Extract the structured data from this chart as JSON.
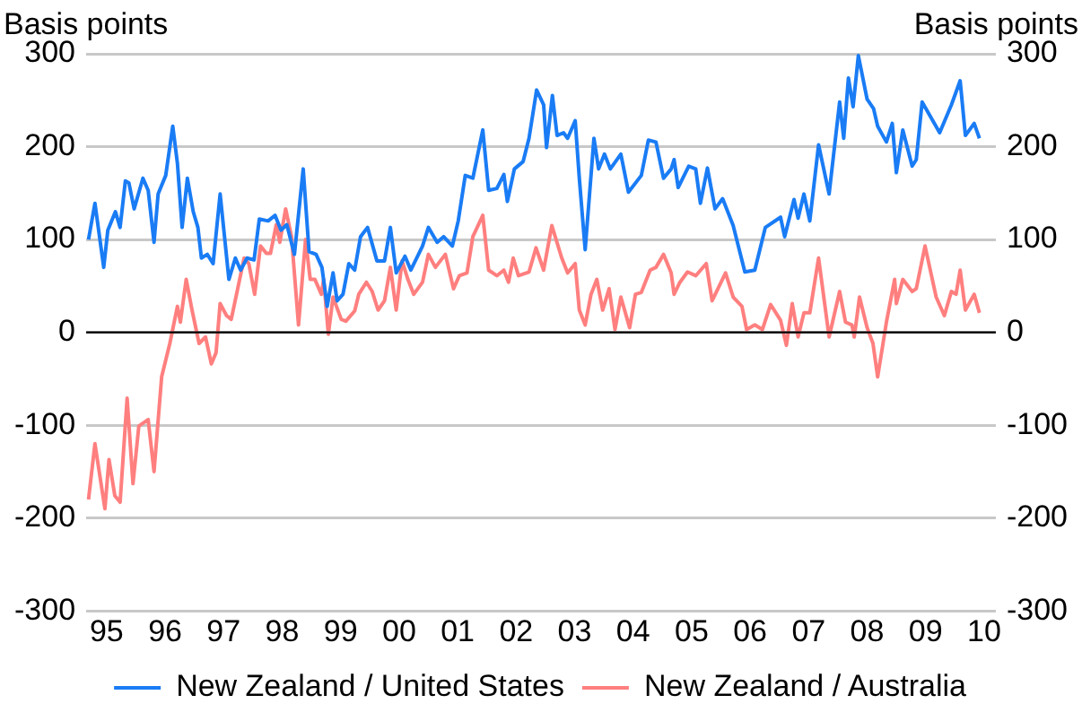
{
  "chart_data": {
    "type": "line",
    "ylabel": "Basis points",
    "y2label": "Basis points",
    "xlim": [
      1994.65,
      2010.2
    ],
    "xticks": [
      {
        "value": 1995,
        "label": "95"
      },
      {
        "value": 1996,
        "label": "96"
      },
      {
        "value": 1997,
        "label": "97"
      },
      {
        "value": 1998,
        "label": "98"
      },
      {
        "value": 1999,
        "label": "99"
      },
      {
        "value": 2000,
        "label": "00"
      },
      {
        "value": 2001,
        "label": "01"
      },
      {
        "value": 2002,
        "label": "02"
      },
      {
        "value": 2003,
        "label": "03"
      },
      {
        "value": 2004,
        "label": "04"
      },
      {
        "value": 2005,
        "label": "05"
      },
      {
        "value": 2006,
        "label": "06"
      },
      {
        "value": 2007,
        "label": "07"
      },
      {
        "value": 2008,
        "label": "08"
      },
      {
        "value": 2009,
        "label": "09"
      },
      {
        "value": 2010,
        "label": "10"
      }
    ],
    "ylim": [
      -300,
      300
    ],
    "yticks": [
      -300,
      -200,
      -100,
      0,
      100,
      200,
      300
    ],
    "y2lim": [
      -300,
      300
    ],
    "y2ticks": [
      -300,
      -200,
      -100,
      0,
      100,
      200,
      300
    ],
    "grid": "y",
    "legend": "bottom",
    "ref_lines": [
      {
        "axis": "y",
        "value": 0,
        "color": "#000000"
      }
    ],
    "series": [
      {
        "name": "New Zealand / United States",
        "color": "#1a7cf5",
        "x": [
          1994.69,
          1994.8,
          1994.95,
          1995.02,
          1995.15,
          1995.23,
          1995.32,
          1995.38,
          1995.47,
          1995.62,
          1995.71,
          1995.81,
          1995.88,
          1996.01,
          1996.13,
          1996.21,
          1996.29,
          1996.38,
          1996.48,
          1996.56,
          1996.62,
          1996.72,
          1996.82,
          1996.94,
          1997.09,
          1997.2,
          1997.29,
          1997.4,
          1997.52,
          1997.61,
          1997.76,
          1997.88,
          1997.98,
          1998.08,
          1998.21,
          1998.36,
          1998.46,
          1998.58,
          1998.68,
          1998.77,
          1998.87,
          1998.94,
          1999.04,
          1999.14,
          1999.24,
          1999.34,
          1999.46,
          1999.62,
          1999.75,
          1999.85,
          1999.95,
          2000.1,
          2000.2,
          2000.4,
          2000.5,
          2000.65,
          2000.76,
          2000.91,
          2001.01,
          2001.13,
          2001.26,
          2001.43,
          2001.53,
          2001.67,
          2001.79,
          2001.85,
          2001.97,
          2002.12,
          2002.22,
          2002.35,
          2002.47,
          2002.52,
          2002.62,
          2002.7,
          2002.81,
          2002.88,
          2003.01,
          2003.08,
          2003.18,
          2003.33,
          2003.41,
          2003.51,
          2003.61,
          2003.79,
          2003.92,
          2004.14,
          2004.26,
          2004.39,
          2004.52,
          2004.65,
          2004.7,
          2004.77,
          2004.95,
          2005.07,
          2005.15,
          2005.27,
          2005.4,
          2005.53,
          2005.71,
          2005.91,
          2006.08,
          2006.26,
          2006.52,
          2006.59,
          2006.75,
          2006.82,
          2006.92,
          2007.02,
          2007.17,
          2007.35,
          2007.53,
          2007.6,
          2007.68,
          2007.76,
          2007.85,
          2008.0,
          2008.11,
          2008.18,
          2008.33,
          2008.43,
          2008.5,
          2008.61,
          2008.77,
          2008.84,
          2008.94,
          2009.24,
          2009.44,
          2009.59,
          2009.68,
          2009.83,
          2009.92
        ],
        "values": [
          100,
          139,
          70,
          110,
          130,
          113,
          163,
          161,
          133,
          166,
          153,
          97,
          149,
          169,
          222,
          182,
          113,
          166,
          130,
          113,
          80,
          84,
          74,
          149,
          57,
          80,
          67,
          80,
          78,
          122,
          120,
          126,
          110,
          116,
          84,
          176,
          87,
          84,
          70,
          28,
          64,
          34,
          41,
          74,
          67,
          103,
          113,
          77,
          77,
          113,
          64,
          82,
          67,
          93,
          113,
          97,
          103,
          93,
          120,
          169,
          166,
          218,
          153,
          155,
          170,
          141,
          176,
          184,
          209,
          261,
          245,
          199,
          255,
          212,
          215,
          209,
          228,
          166,
          89,
          209,
          176,
          192,
          176,
          192,
          151,
          169,
          207,
          205,
          166,
          176,
          186,
          156,
          179,
          176,
          139,
          177,
          133,
          144,
          115,
          65,
          67,
          113,
          124,
          103,
          143,
          123,
          149,
          120,
          202,
          149,
          248,
          209,
          274,
          243,
          298,
          251,
          241,
          222,
          205,
          225,
          172,
          218,
          179,
          186,
          248,
          215,
          245,
          271,
          212,
          225,
          209
        ]
      },
      {
        "name": "New Zealand / Australia",
        "color": "#ff7f7f",
        "x": [
          1994.69,
          1994.8,
          1994.97,
          1995.04,
          1995.14,
          1995.23,
          1995.35,
          1995.45,
          1995.55,
          1995.71,
          1995.81,
          1995.94,
          1996.08,
          1996.21,
          1996.26,
          1996.36,
          1996.46,
          1996.58,
          1996.69,
          1996.79,
          1996.87,
          1996.94,
          1997.05,
          1997.13,
          1997.23,
          1997.35,
          1997.43,
          1997.53,
          1997.63,
          1997.73,
          1997.8,
          1997.9,
          1997.96,
          1998.06,
          1998.16,
          1998.28,
          1998.4,
          1998.48,
          1998.56,
          1998.67,
          1998.71,
          1998.79,
          1998.87,
          1999.01,
          1999.09,
          1999.24,
          1999.31,
          1999.44,
          1999.54,
          1999.64,
          1999.75,
          1999.85,
          1999.95,
          2000.05,
          2000.15,
          2000.25,
          2000.4,
          2000.5,
          2000.62,
          2000.79,
          2000.93,
          2001.03,
          2001.16,
          2001.26,
          2001.43,
          2001.53,
          2001.67,
          2001.79,
          2001.87,
          2001.95,
          2002.04,
          2002.22,
          2002.34,
          2002.47,
          2002.61,
          2002.78,
          2002.88,
          2003.01,
          2003.08,
          2003.18,
          2003.28,
          2003.38,
          2003.48,
          2003.59,
          2003.69,
          2003.79,
          2003.94,
          2004.04,
          2004.14,
          2004.29,
          2004.39,
          2004.52,
          2004.65,
          2004.7,
          2004.8,
          2004.93,
          2005.07,
          2005.25,
          2005.35,
          2005.58,
          2005.71,
          2005.86,
          2005.94,
          2006.08,
          2006.21,
          2006.35,
          2006.52,
          2006.62,
          2006.72,
          2006.82,
          2006.92,
          2007.02,
          2007.17,
          2007.35,
          2007.53,
          2007.63,
          2007.74,
          2007.78,
          2007.87,
          2008.0,
          2008.1,
          2008.18,
          2008.33,
          2008.47,
          2008.5,
          2008.61,
          2008.77,
          2008.84,
          2008.99,
          2009.18,
          2009.32,
          2009.44,
          2009.52,
          2009.59,
          2009.68,
          2009.83,
          2009.92
        ],
        "values": [
          -180,
          -120,
          -190,
          -137,
          -176,
          -183,
          -71,
          -163,
          -101,
          -94,
          -150,
          -48,
          -12,
          28,
          11,
          57,
          24,
          -12,
          -5,
          -34,
          -22,
          31,
          18,
          14,
          44,
          80,
          74,
          41,
          93,
          85,
          85,
          116,
          97,
          133,
          103,
          8,
          100,
          57,
          57,
          41,
          57,
          -2,
          38,
          14,
          12,
          23,
          41,
          54,
          44,
          24,
          34,
          70,
          24,
          77,
          57,
          41,
          54,
          84,
          70,
          84,
          47,
          61,
          64,
          103,
          126,
          67,
          61,
          67,
          54,
          80,
          61,
          65,
          91,
          67,
          115,
          80,
          64,
          74,
          24,
          8,
          41,
          57,
          24,
          47,
          3,
          38,
          5,
          41,
          43,
          67,
          70,
          84,
          64,
          41,
          54,
          65,
          61,
          74,
          34,
          64,
          38,
          28,
          3,
          8,
          3,
          30,
          13,
          -14,
          31,
          -5,
          21,
          21,
          80,
          -5,
          44,
          11,
          8,
          -5,
          38,
          5,
          -12,
          -48,
          11,
          57,
          31,
          57,
          44,
          47,
          93,
          38,
          18,
          44,
          41,
          67,
          24,
          41,
          21
        ]
      }
    ]
  }
}
